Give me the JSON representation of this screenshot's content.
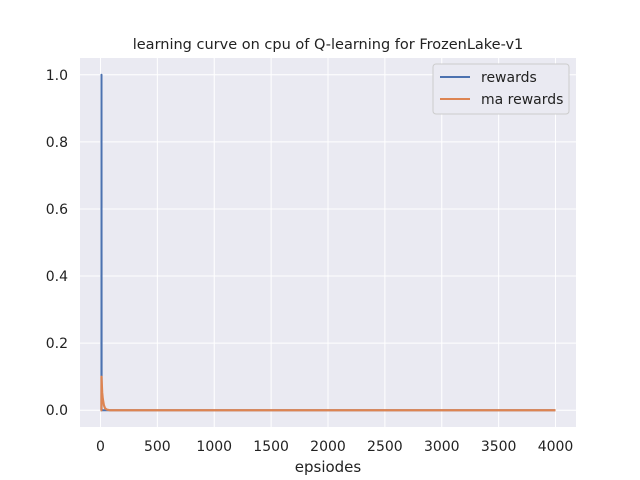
{
  "chart_data": {
    "type": "line",
    "title": "learning curve on cpu of Q-learning for FrozenLake-v1",
    "xlabel": "epsiodes",
    "ylabel": "",
    "xlim": [
      -180,
      4180
    ],
    "ylim": [
      -0.05,
      1.05
    ],
    "xticks": [
      0,
      500,
      1000,
      1500,
      2000,
      2500,
      3000,
      3500,
      4000
    ],
    "xtick_labels": [
      "0",
      "500",
      "1000",
      "1500",
      "2000",
      "2500",
      "3000",
      "3500",
      "4000"
    ],
    "yticks": [
      0.0,
      0.2,
      0.4,
      0.6,
      0.8,
      1.0
    ],
    "ytick_labels": [
      "0.0",
      "0.2",
      "0.4",
      "0.6",
      "0.8",
      "1.0"
    ],
    "grid": true,
    "background": "#eaeaf2",
    "legend_position": "top-right",
    "series": [
      {
        "name": "rewards",
        "color": "#4c72b0",
        "points": [
          [
            0,
            0
          ],
          [
            8,
            0
          ],
          [
            9,
            1
          ],
          [
            10,
            0
          ],
          [
            4000,
            0
          ]
        ]
      },
      {
        "name": "ma rewards",
        "color": "#dd8452",
        "points": [
          [
            0,
            0
          ],
          [
            8,
            0
          ],
          [
            9,
            0.1
          ],
          [
            15,
            0.053
          ],
          [
            20,
            0.035
          ],
          [
            30,
            0.015
          ],
          [
            40,
            0.006
          ],
          [
            55,
            0.002
          ],
          [
            80,
            0.0
          ],
          [
            4000,
            0
          ]
        ]
      }
    ]
  }
}
